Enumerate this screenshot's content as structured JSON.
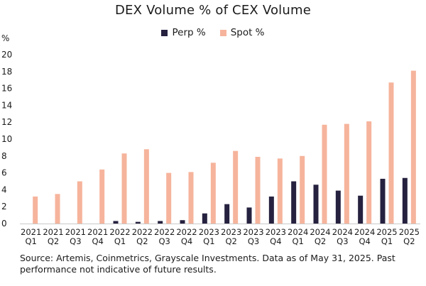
{
  "chart_data": {
    "type": "bar",
    "title": "DEX Volume % of CEX Volume",
    "ylabel": "%",
    "xlabel": "",
    "ylim": [
      0,
      20
    ],
    "yticks": [
      0,
      2,
      4,
      6,
      8,
      10,
      12,
      14,
      16,
      18,
      20
    ],
    "grid": false,
    "legend_position": "top-center",
    "categories": [
      "2021 Q1",
      "2021 Q2",
      "2021 Q3",
      "2021 Q4",
      "2022 Q1",
      "2022 Q2",
      "2022 Q3",
      "2022 Q4",
      "2023 Q1",
      "2023 Q2",
      "2023 Q3",
      "2023 Q4",
      "2024 Q1",
      "2024 Q2",
      "2024 Q3",
      "2024 Q4",
      "2025 Q1",
      "2025 Q2"
    ],
    "category_lines": [
      [
        "2021",
        "Q1"
      ],
      [
        "2021",
        "Q2"
      ],
      [
        "2021",
        "Q3"
      ],
      [
        "2021",
        "Q4"
      ],
      [
        "2022",
        "Q1"
      ],
      [
        "2022",
        "Q2"
      ],
      [
        "2022",
        "Q3"
      ],
      [
        "2022",
        "Q4"
      ],
      [
        "2023",
        "Q1"
      ],
      [
        "2023",
        "Q2"
      ],
      [
        "2023",
        "Q3"
      ],
      [
        "2023",
        "Q4"
      ],
      [
        "2024",
        "Q1"
      ],
      [
        "2024",
        "Q2"
      ],
      [
        "2024",
        "Q3"
      ],
      [
        "2024",
        "Q4"
      ],
      [
        "2025",
        "Q1"
      ],
      [
        "2025",
        "Q2"
      ]
    ],
    "series": [
      {
        "name": "Perp %",
        "color": "#25213f",
        "values": [
          0,
          0,
          0,
          0,
          0.3,
          0.2,
          0.3,
          0.4,
          1.2,
          2.3,
          1.9,
          3.2,
          5.0,
          4.6,
          3.9,
          3.3,
          5.3,
          5.4
        ]
      },
      {
        "name": "Spot %",
        "color": "#f6b49c",
        "values": [
          3.2,
          3.5,
          5.0,
          6.4,
          8.3,
          8.8,
          6.0,
          6.1,
          7.2,
          8.6,
          7.9,
          7.7,
          8.0,
          11.7,
          11.8,
          12.1,
          16.7,
          18.1
        ]
      }
    ]
  },
  "source_note": "Source: Artemis, Coinmetrics, Grayscale Investments. Data as of May 31, 2025. Past performance not indicative of future results."
}
